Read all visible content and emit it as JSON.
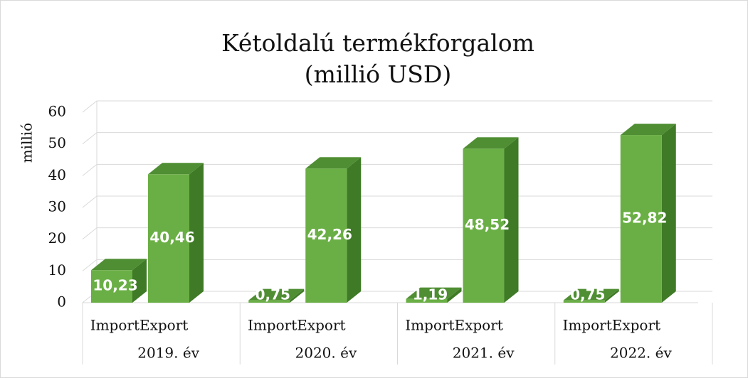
{
  "chart_data": {
    "type": "bar3d",
    "title": "Kétoldalú termékforgalom (millió USD)",
    "ylabel": "millió",
    "categories": [
      "2019. év",
      "2020. év",
      "2021. év",
      "2022. év"
    ],
    "series": [
      {
        "name": "Import",
        "color": "#6aaf45",
        "values": [
          10.23,
          0.75,
          1.19,
          0.75
        ],
        "value_labels": [
          "10,23",
          "0,75",
          "1,19",
          "0,75"
        ]
      },
      {
        "name": "Export",
        "color": "#6aaf45",
        "values": [
          40.46,
          42.26,
          48.52,
          52.82
        ],
        "value_labels": [
          "40,46",
          "42,26",
          "48,52",
          "52,82"
        ]
      }
    ],
    "ylim": [
      0,
      60
    ],
    "yticks": [
      0,
      10,
      20,
      30,
      40,
      50,
      60
    ],
    "grid": true
  }
}
